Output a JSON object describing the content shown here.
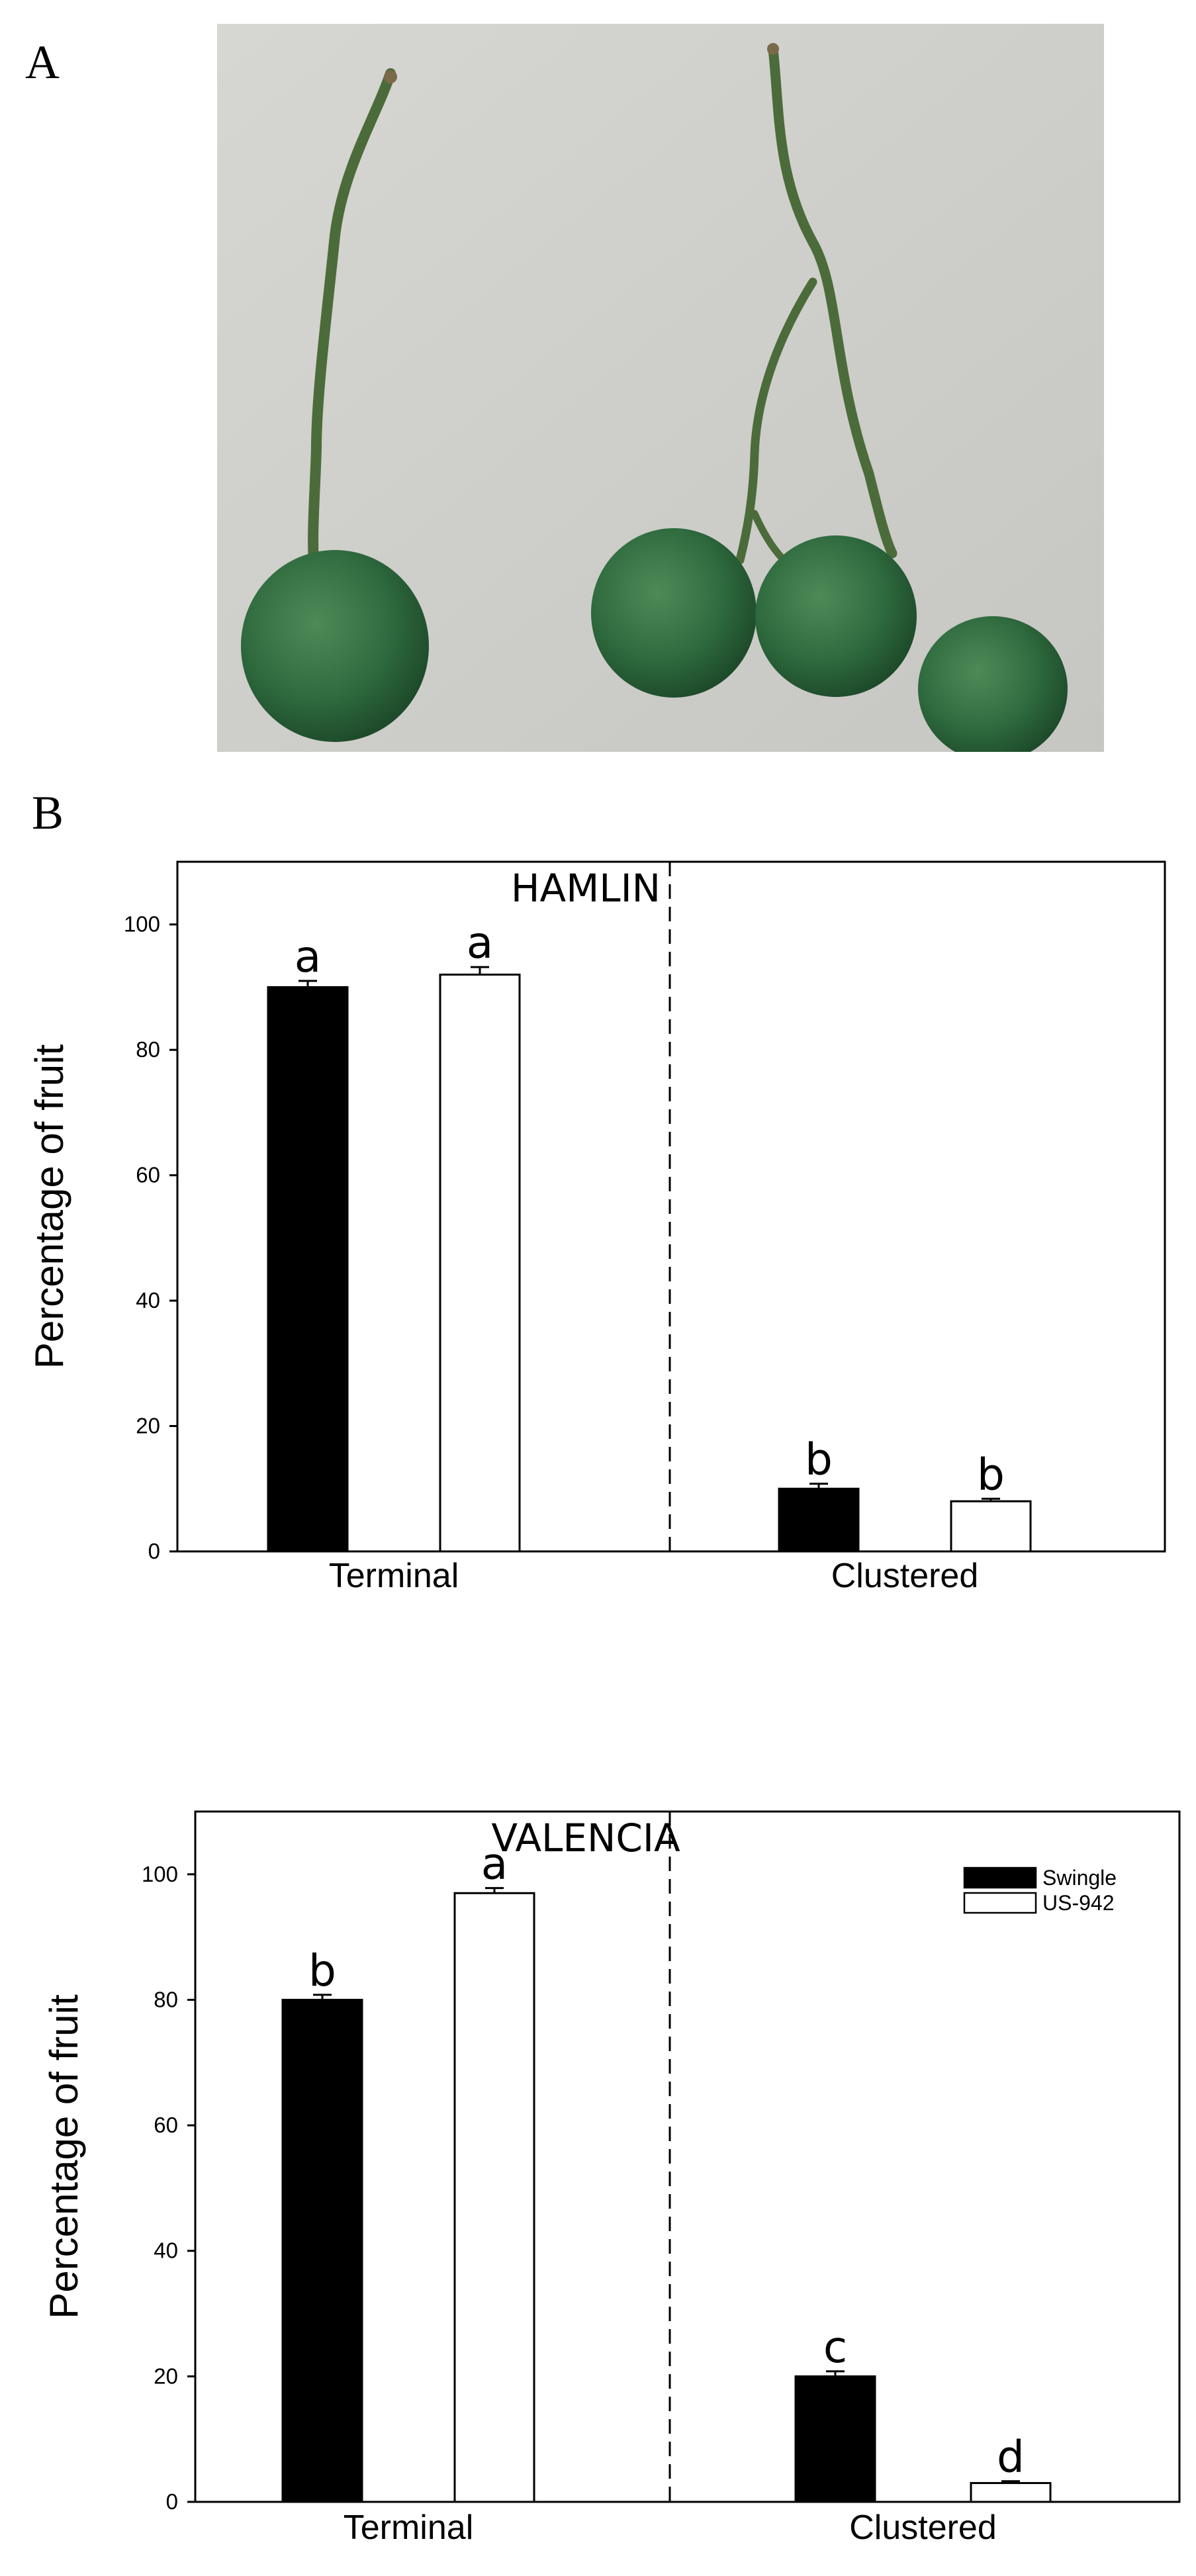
{
  "panels": {
    "a_label": "A",
    "b_label": "B"
  },
  "photo": {
    "subject": "green citrus fruit: single terminal fruit on the left, cluster of three fruit on the right",
    "colors": {
      "background": "#cfcfcb",
      "fruit": "#2f6b3e",
      "stem": "#4c6b3a"
    }
  },
  "colors": {
    "swingle": "#000000",
    "us942": "#ffffff",
    "edge": "#000000"
  },
  "chart_data": [
    {
      "type": "bar",
      "title": "HAMLIN",
      "xlabel": "",
      "ylabel": "Percentage of fruit",
      "ylim": [
        0,
        110
      ],
      "yticks": [
        0,
        20,
        40,
        60,
        80,
        100
      ],
      "categories": [
        "Terminal",
        "Clustered"
      ],
      "series": [
        {
          "values": [
            90,
            10
          ],
          "errors": [
            1,
            0.8
          ],
          "letters": [
            "a",
            "b"
          ],
          "fill": "#000000"
        },
        {
          "values": [
            92,
            8
          ],
          "errors": [
            1.2,
            0.4
          ],
          "letters": [
            "a",
            "b"
          ],
          "fill": "#ffffff"
        }
      ],
      "divider": "dashed vertical line between categories",
      "legend": null,
      "grid": false
    },
    {
      "type": "bar",
      "title": "VALENCIA",
      "xlabel": "",
      "ylabel": "Percentage of fruit",
      "ylim": [
        0,
        110
      ],
      "yticks": [
        0,
        20,
        40,
        60,
        80,
        100
      ],
      "categories": [
        "Terminal",
        "Clustered"
      ],
      "series": [
        {
          "name": "Swingle",
          "values": [
            80,
            20
          ],
          "errors": [
            0.8,
            0.8
          ],
          "letters": [
            "b",
            "c"
          ],
          "fill": "#000000"
        },
        {
          "name": "US-942",
          "values": [
            97,
            3
          ],
          "errors": [
            0.8,
            0.3
          ],
          "letters": [
            "a",
            "d"
          ],
          "fill": "#ffffff"
        }
      ],
      "divider": "dashed vertical line between categories",
      "legend": "top-right",
      "grid": false
    }
  ]
}
